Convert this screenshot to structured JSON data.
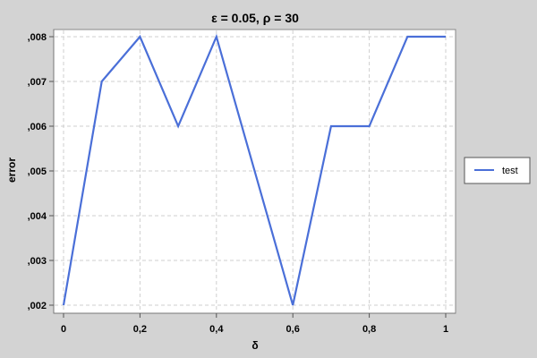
{
  "chart_data": {
    "type": "line",
    "title": "ε = 0.05, ρ = 30",
    "xlabel": "δ",
    "ylabel": "error",
    "xlim": [
      0,
      1
    ],
    "ylim": [
      0.002,
      0.008
    ],
    "x_ticks": [
      0,
      0.2,
      0.4,
      0.6,
      0.8,
      1
    ],
    "x_tick_labels": [
      "0",
      "0,2",
      "0,4",
      "0,6",
      "0,8",
      "1"
    ],
    "y_ticks": [
      0.002,
      0.003,
      0.004,
      0.005,
      0.006,
      0.007,
      0.008
    ],
    "y_tick_labels": [
      ",002",
      ",003",
      ",004",
      ",005",
      ",006",
      ",007",
      ",008"
    ],
    "grid": true,
    "legend_position": "right",
    "series": [
      {
        "name": "test",
        "color": "#4a6fd8",
        "x": [
          0,
          0.1,
          0.2,
          0.3,
          0.4,
          0.5,
          0.6,
          0.7,
          0.8,
          0.9,
          1
        ],
        "y": [
          0.002,
          0.007,
          0.008,
          0.006,
          0.008,
          0.005,
          0.002,
          0.006,
          0.006,
          0.008,
          0.008
        ]
      }
    ]
  }
}
